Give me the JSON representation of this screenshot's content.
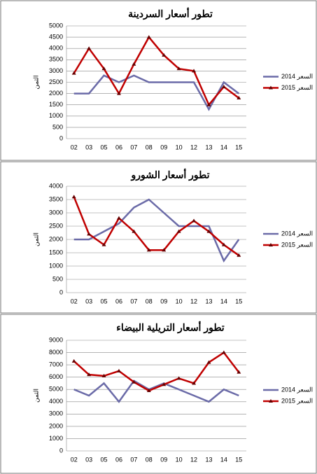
{
  "chart_data": [
    {
      "type": "line",
      "title": "تطور أسعار السردينة",
      "y_label": "الثمن",
      "categories": [
        "02",
        "03",
        "05",
        "06",
        "07",
        "08",
        "09",
        "10",
        "12",
        "13",
        "14",
        "15"
      ],
      "series": [
        {
          "name": "السعر 2014",
          "color": "#6b6ba8",
          "values": [
            2000,
            2000,
            2800,
            2500,
            2800,
            2500,
            2500,
            2500,
            2500,
            1300,
            2500,
            2000
          ]
        },
        {
          "name": "السعر 2015",
          "color": "#c00000",
          "values": [
            2900,
            4000,
            3100,
            2000,
            3300,
            4500,
            3700,
            3100,
            3000,
            1500,
            2300,
            1800
          ]
        }
      ],
      "ylim": [
        0,
        5000
      ],
      "yticks": [
        0,
        500,
        1000,
        1500,
        2000,
        2500,
        3000,
        3500,
        4000,
        4500,
        5000
      ],
      "grid": true
    },
    {
      "type": "line",
      "title": "تطور أسعار الشورو",
      "y_label": "الثمن",
      "categories": [
        "02",
        "03",
        "05",
        "06",
        "07",
        "08",
        "09",
        "10",
        "12",
        "13",
        "14",
        "15"
      ],
      "series": [
        {
          "name": "السعر 2014",
          "color": "#6b6ba8",
          "values": [
            2000,
            2000,
            2300,
            2600,
            3200,
            3500,
            3000,
            2500,
            2500,
            2500,
            1200,
            2000
          ]
        },
        {
          "name": "السعر 2015",
          "color": "#c00000",
          "values": [
            3600,
            2200,
            1800,
            2800,
            2300,
            1600,
            1600,
            2300,
            2700,
            2300,
            1800,
            1400
          ]
        }
      ],
      "ylim": [
        0,
        4000
      ],
      "yticks": [
        0,
        500,
        1000,
        1500,
        2000,
        2500,
        3000,
        3500,
        4000
      ],
      "grid": true
    },
    {
      "type": "line",
      "title": "تطور أسعار التريلية البيضاء",
      "y_label": "الثمن",
      "categories": [
        "02",
        "03",
        "05",
        "06",
        "07",
        "08",
        "09",
        "10",
        "12",
        "13",
        "14",
        "15"
      ],
      "series": [
        {
          "name": "السعر 2014",
          "color": "#6b6ba8",
          "values": [
            5000,
            4500,
            5500,
            4000,
            5700,
            5000,
            5500,
            5000,
            4500,
            4000,
            5000,
            4500
          ]
        },
        {
          "name": "السعر 2015",
          "color": "#c00000",
          "values": [
            7300,
            6200,
            6100,
            6500,
            5600,
            4900,
            5400,
            5900,
            5500,
            7200,
            8000,
            6400
          ]
        }
      ],
      "ylim": [
        0,
        9000
      ],
      "yticks": [
        0,
        1000,
        2000,
        3000,
        4000,
        5000,
        6000,
        7000,
        8000,
        9000
      ],
      "grid": true
    }
  ]
}
